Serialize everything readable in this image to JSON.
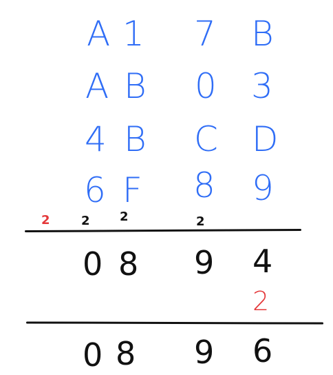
{
  "colors": {
    "operands": "#2f6df6",
    "result": "#111111",
    "carry": "#e4383a"
  },
  "operands": [
    [
      "A",
      "1",
      "7",
      "B"
    ],
    [
      "A",
      "B",
      "0",
      "3"
    ],
    [
      "4",
      "B",
      "C",
      "D"
    ],
    [
      "6",
      "F",
      "8",
      "9"
    ]
  ],
  "carries_first": {
    "red": "2",
    "black": [
      "2",
      "2",
      "2"
    ]
  },
  "partial_sum": [
    "0",
    "8",
    "9",
    "4"
  ],
  "second_carry": "2",
  "final_sum": [
    "0",
    "8",
    "9",
    "6"
  ]
}
